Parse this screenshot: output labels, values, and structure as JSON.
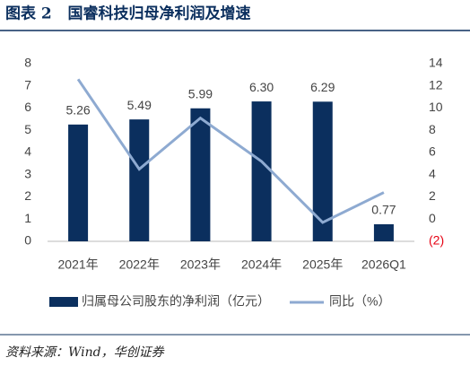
{
  "chart_data": {
    "type": "bar-line",
    "title": "图表 2   国睿科技归母净利润及增速",
    "source": "资料来源：Wind，华创证券",
    "categories": [
      "2021年",
      "2022年",
      "2023年",
      "2024年",
      "2025年",
      "2026Q1"
    ],
    "series": [
      {
        "name": "归属母公司股东的净利润（亿元）",
        "type": "bar",
        "color": "#0b2f5e",
        "values": [
          5.26,
          5.49,
          5.99,
          6.3,
          6.29,
          0.77
        ],
        "value_labels": [
          "5.26",
          "5.49",
          "5.99",
          "6.30",
          "6.29",
          "0.77"
        ]
      },
      {
        "name": "同比（%）",
        "type": "line",
        "axis": "y2",
        "color": "#8eaad1",
        "values": [
          12.6,
          4.5,
          9.1,
          5.2,
          -0.3,
          2.4
        ]
      }
    ],
    "ylim": [
      0,
      8
    ],
    "yticks": [
      0,
      1,
      2,
      3,
      4,
      5,
      6,
      7,
      8
    ],
    "y2lim": [
      -2,
      14
    ],
    "y2ticks": [
      {
        "value": -2,
        "label": "(2)"
      },
      0,
      2,
      4,
      6,
      8,
      10,
      12,
      14
    ],
    "negative_tick_color": "#e60012",
    "grid": false,
    "legend": "bottom"
  }
}
